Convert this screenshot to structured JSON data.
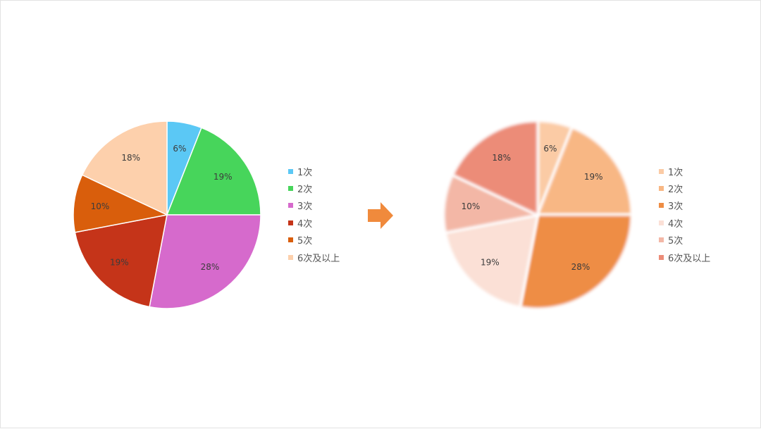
{
  "chart_data": [
    {
      "type": "pie",
      "style": "flat",
      "categories": [
        "1次",
        "2次",
        "3次",
        "4次",
        "5次",
        "6次及以上"
      ],
      "values": [
        6,
        19,
        28,
        19,
        10,
        18
      ],
      "labels": [
        "6%",
        "19%",
        "28%",
        "19%",
        "10%",
        "18%"
      ],
      "colors": [
        "#5BC8F5",
        "#47D55B",
        "#D66ACC",
        "#C53419",
        "#D95E0C",
        "#FDD0AC"
      ],
      "legend_position": "right"
    },
    {
      "type": "pie",
      "style": "soft-gradient",
      "categories": [
        "1次",
        "2次",
        "3次",
        "4次",
        "5次",
        "6次及以上"
      ],
      "values": [
        6,
        19,
        28,
        19,
        10,
        18
      ],
      "labels": [
        "6%",
        "19%",
        "28%",
        "19%",
        "10%",
        "18%"
      ],
      "colors": [
        "#FBCBA5",
        "#F8B784",
        "#EE8D44",
        "#FBE0D6",
        "#F3B7A6",
        "#EC8C78"
      ],
      "legend_position": "right"
    }
  ],
  "arrow": {
    "icon": "arrow-right-icon",
    "color": "#F08A3C"
  }
}
